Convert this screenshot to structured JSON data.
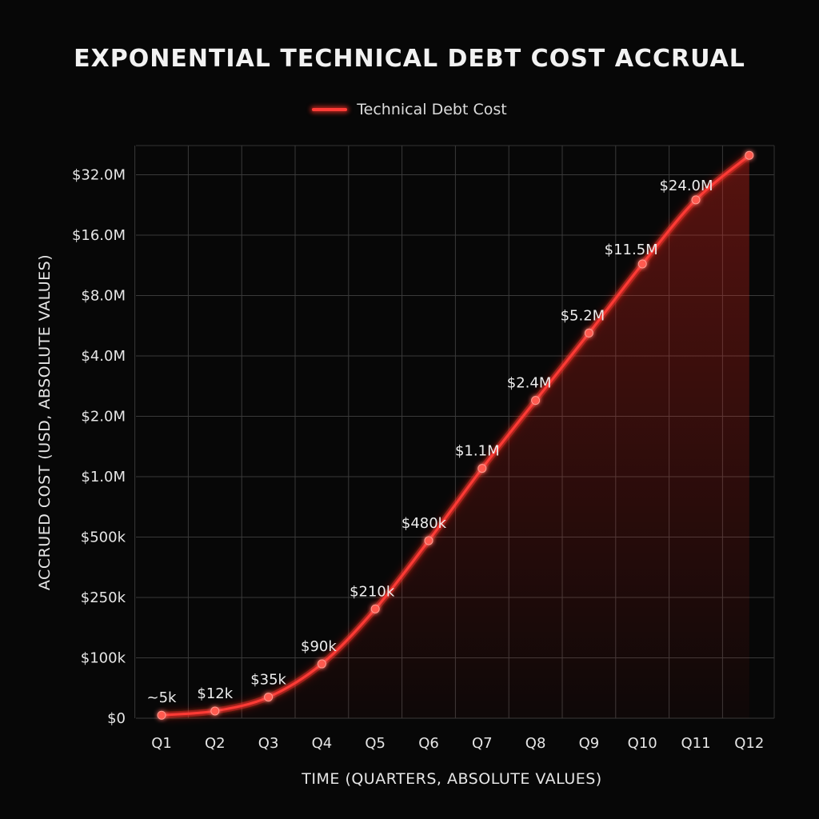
{
  "chart_data": {
    "type": "line",
    "title": "EXPONENTIAL TECHNICAL DEBT COST ACCRUAL",
    "xlabel": "TIME (QUARTERS, ABSOLUTE VALUES)",
    "ylabel": "ACCRUED COST (USD, ABSOLUTE VALUES)",
    "y_scale": "log",
    "grid": true,
    "legend_position": "top-center",
    "categories": [
      "Q1",
      "Q2",
      "Q3",
      "Q4",
      "Q5",
      "Q6",
      "Q7",
      "Q8",
      "Q9",
      "Q10",
      "Q11",
      "Q12"
    ],
    "y_ticks": [
      {
        "label": "$0",
        "value": 0
      },
      {
        "label": "$100k",
        "value": 100000
      },
      {
        "label": "$250k",
        "value": 250000
      },
      {
        "label": "$500k",
        "value": 500000
      },
      {
        "label": "$1.0M",
        "value": 1000000
      },
      {
        "label": "$2.0M",
        "value": 2000000
      },
      {
        "label": "$4.0M",
        "value": 4000000
      },
      {
        "label": "$8.0M",
        "value": 8000000
      },
      {
        "label": "$16.0M",
        "value": 16000000
      },
      {
        "label": "$32.0M",
        "value": 32000000
      }
    ],
    "series": [
      {
        "name": "Technical Debt Cost",
        "color": "#ff3b36",
        "values": [
          5000,
          12000,
          35000,
          90000,
          210000,
          480000,
          1100000,
          2400000,
          5200000,
          11500000,
          24000000,
          40000000
        ],
        "data_labels": [
          "~5k",
          "$12k",
          "$35k",
          "$90k",
          "$210k",
          "$480k",
          "$1.1M",
          "$2.4M",
          "$5.2M",
          "$11.5M",
          "$24.0M",
          ""
        ]
      }
    ]
  }
}
